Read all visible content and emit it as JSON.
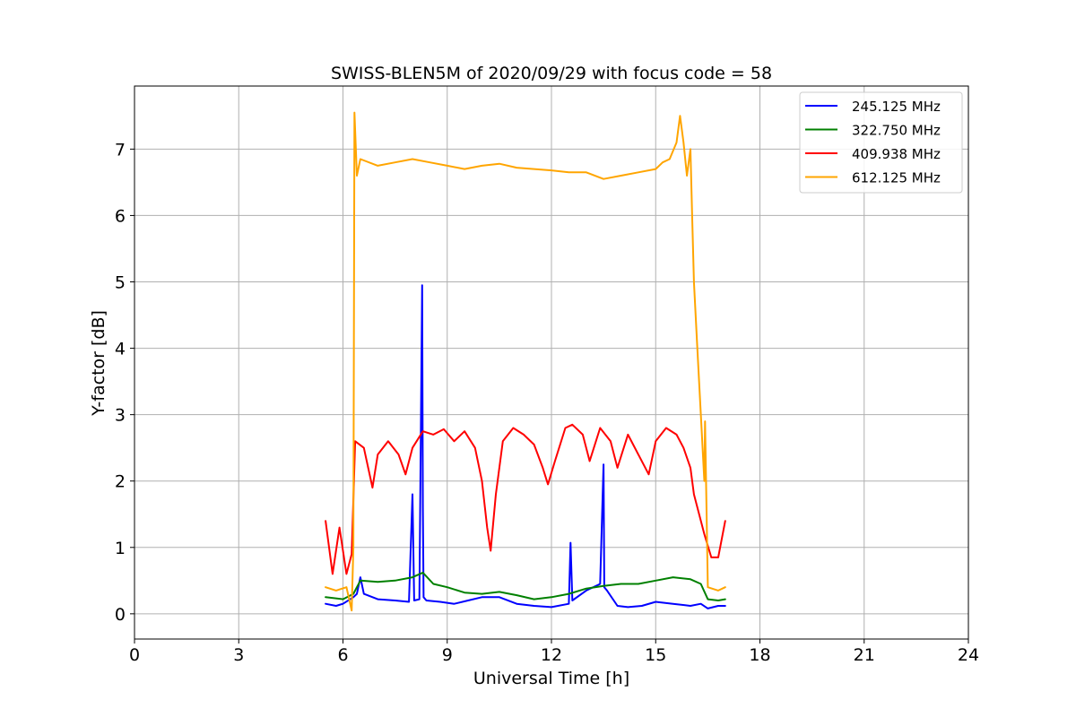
{
  "chart_data": {
    "type": "line",
    "title": "SWISS-BLEN5M of 2020/09/29 with focus code = 58",
    "xlabel": "Universal Time [h]",
    "ylabel": "Y-factor [dB]",
    "xlim": [
      0,
      24
    ],
    "ylim": [
      -0.38,
      7.95
    ],
    "xticks": [
      0,
      3,
      6,
      9,
      12,
      15,
      18,
      21,
      24
    ],
    "yticks": [
      0,
      1,
      2,
      3,
      4,
      5,
      6,
      7
    ],
    "grid": true,
    "legend_position": "top-right",
    "series": [
      {
        "name": "245.125 MHz",
        "color": "#0000ff",
        "x": [
          5.5,
          5.8,
          6.0,
          6.3,
          6.4,
          6.5,
          6.6,
          7.0,
          7.5,
          7.9,
          8.0,
          8.05,
          8.2,
          8.28,
          8.3,
          8.32,
          8.4,
          8.8,
          9.2,
          9.6,
          10.0,
          10.5,
          11.0,
          11.5,
          12.0,
          12.5,
          12.55,
          12.6,
          13.0,
          13.4,
          13.5,
          13.52,
          13.6,
          13.9,
          14.2,
          14.6,
          15.0,
          15.5,
          16.0,
          16.3,
          16.5,
          16.8,
          17.0
        ],
        "y": [
          0.15,
          0.12,
          0.15,
          0.25,
          0.3,
          0.55,
          0.3,
          0.22,
          0.2,
          0.18,
          1.8,
          0.2,
          0.22,
          4.95,
          1.6,
          0.25,
          0.2,
          0.18,
          0.15,
          0.2,
          0.25,
          0.25,
          0.15,
          0.12,
          0.1,
          0.15,
          1.07,
          0.2,
          0.35,
          0.45,
          2.25,
          0.4,
          0.35,
          0.12,
          0.1,
          0.12,
          0.18,
          0.15,
          0.12,
          0.15,
          0.08,
          0.12,
          0.12
        ]
      },
      {
        "name": "322.750 MHz",
        "color": "#008000",
        "x": [
          5.5,
          6.0,
          6.3,
          6.5,
          7.0,
          7.5,
          8.0,
          8.3,
          8.6,
          9.0,
          9.5,
          10.0,
          10.5,
          11.0,
          11.5,
          12.0,
          12.5,
          13.0,
          13.5,
          14.0,
          14.5,
          15.0,
          15.5,
          16.0,
          16.3,
          16.5,
          16.8,
          17.0
        ],
        "y": [
          0.25,
          0.22,
          0.3,
          0.5,
          0.48,
          0.5,
          0.55,
          0.62,
          0.45,
          0.4,
          0.32,
          0.3,
          0.33,
          0.28,
          0.22,
          0.25,
          0.3,
          0.38,
          0.42,
          0.45,
          0.45,
          0.5,
          0.55,
          0.52,
          0.45,
          0.22,
          0.2,
          0.22
        ]
      },
      {
        "name": "409.938 MHz",
        "color": "#ff0000",
        "x": [
          5.5,
          5.7,
          5.9,
          6.1,
          6.25,
          6.35,
          6.6,
          6.85,
          7.0,
          7.3,
          7.6,
          7.8,
          8.0,
          8.3,
          8.6,
          8.9,
          9.2,
          9.5,
          9.8,
          10.0,
          10.15,
          10.25,
          10.4,
          10.6,
          10.9,
          11.2,
          11.5,
          11.75,
          11.9,
          12.1,
          12.4,
          12.6,
          12.9,
          13.1,
          13.4,
          13.7,
          13.9,
          14.2,
          14.5,
          14.8,
          15.0,
          15.3,
          15.6,
          15.8,
          16.0,
          16.1,
          16.25,
          16.4,
          16.6,
          16.8,
          17.0
        ],
        "y": [
          1.4,
          0.6,
          1.3,
          0.6,
          0.9,
          2.6,
          2.5,
          1.9,
          2.4,
          2.6,
          2.4,
          2.1,
          2.5,
          2.75,
          2.7,
          2.78,
          2.6,
          2.75,
          2.5,
          2.0,
          1.3,
          0.95,
          1.8,
          2.6,
          2.8,
          2.7,
          2.55,
          2.2,
          1.95,
          2.3,
          2.8,
          2.85,
          2.7,
          2.3,
          2.8,
          2.6,
          2.2,
          2.7,
          2.4,
          2.1,
          2.6,
          2.8,
          2.7,
          2.5,
          2.2,
          1.8,
          1.5,
          1.2,
          0.85,
          0.85,
          1.4
        ]
      },
      {
        "name": "612.125 MHz",
        "color": "#ffa500",
        "x": [
          5.5,
          5.8,
          6.1,
          6.25,
          6.3,
          6.33,
          6.4,
          6.5,
          7.0,
          7.5,
          8.0,
          8.5,
          9.0,
          9.5,
          10.0,
          10.5,
          11.0,
          11.5,
          12.0,
          12.5,
          13.0,
          13.5,
          14.0,
          14.5,
          15.0,
          15.2,
          15.4,
          15.6,
          15.7,
          15.8,
          15.9,
          16.0,
          16.05,
          16.1,
          16.2,
          16.3,
          16.4,
          16.42,
          16.5,
          16.8,
          17.0
        ],
        "y": [
          0.4,
          0.35,
          0.4,
          0.05,
          1.0,
          7.55,
          6.6,
          6.85,
          6.75,
          6.8,
          6.85,
          6.8,
          6.75,
          6.7,
          6.75,
          6.78,
          6.72,
          6.7,
          6.68,
          6.65,
          6.65,
          6.55,
          6.6,
          6.65,
          6.7,
          6.8,
          6.85,
          7.1,
          7.5,
          7.1,
          6.6,
          7.0,
          6.0,
          5.0,
          4.0,
          3.0,
          2.0,
          2.9,
          0.4,
          0.35,
          0.4
        ]
      }
    ]
  }
}
